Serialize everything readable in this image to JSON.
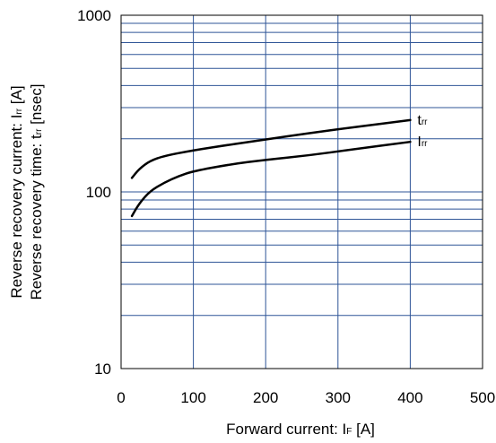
{
  "chart_data": {
    "type": "line",
    "x_axis": {
      "label_main": "Forward current: I",
      "label_sub": "F",
      "label_unit": " [A]",
      "min": 0,
      "max": 500,
      "ticks": [
        0,
        100,
        200,
        300,
        400,
        500
      ],
      "tick_labels": [
        "0",
        "100",
        "200",
        "300",
        "400",
        "500"
      ]
    },
    "y_axis": {
      "scale": "log",
      "min": 10,
      "max": 1000,
      "ticks": [
        10,
        100,
        1000
      ],
      "tick_labels": [
        "10",
        "100",
        "1000"
      ],
      "label_line1_main": "Reverse recovery current: I",
      "label_line1_sub": "rr",
      "label_line1_unit": " [A]",
      "label_line2_main": "Reverse recovery time: t",
      "label_line2_sub": "rr",
      "label_line2_unit": " [nsec]"
    },
    "grid": true,
    "grid_color": "#2f5597",
    "series": [
      {
        "name_main": "t",
        "name_sub": "rr",
        "color": "#000000",
        "x": [
          15,
          25,
          40,
          60,
          100,
          150,
          200,
          260,
          320,
          400
        ],
        "y": [
          120,
          135,
          150,
          160,
          172,
          185,
          198,
          215,
          232,
          255
        ]
      },
      {
        "name_main": "I",
        "name_sub": "rr",
        "color": "#000000",
        "x": [
          15,
          25,
          40,
          60,
          80,
          100,
          150,
          200,
          260,
          320,
          400
        ],
        "y": [
          73,
          86,
          101,
          113,
          123,
          131,
          143,
          152,
          161,
          174,
          192
        ]
      }
    ]
  }
}
